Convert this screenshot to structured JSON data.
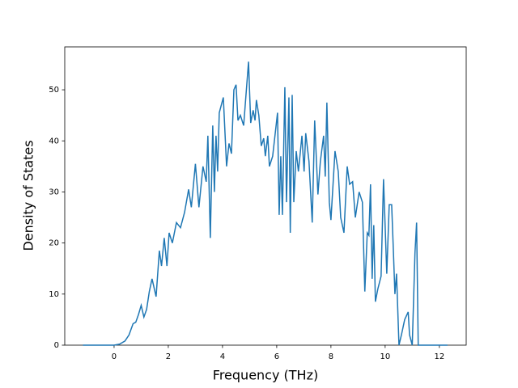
{
  "chart_data": {
    "type": "line",
    "x_label": "Frequency (THz)",
    "y_label": "Density of States",
    "xlim": [
      -1.82,
      12.99
    ],
    "ylim": [
      0,
      58.4
    ],
    "xticks": [
      0,
      2,
      4,
      6,
      8,
      10,
      12
    ],
    "yticks": [
      0,
      10,
      20,
      30,
      40,
      50
    ],
    "series": [
      {
        "color": "#1f77b4",
        "x": [
          -1.15,
          0.0,
          0.2,
          0.4,
          0.55,
          0.7,
          0.8,
          0.9,
          1.0,
          1.1,
          1.2,
          1.3,
          1.4,
          1.55,
          1.67,
          1.75,
          1.85,
          1.95,
          2.03,
          2.15,
          2.3,
          2.45,
          2.6,
          2.75,
          2.85,
          3.0,
          3.13,
          3.28,
          3.4,
          3.46,
          3.55,
          3.64,
          3.7,
          3.76,
          3.82,
          3.88,
          4.03,
          4.15,
          4.24,
          4.33,
          4.42,
          4.5,
          4.57,
          4.66,
          4.78,
          4.96,
          5.04,
          5.13,
          5.2,
          5.25,
          5.34,
          5.43,
          5.52,
          5.58,
          5.67,
          5.73,
          5.85,
          6.03,
          6.09,
          6.15,
          6.21,
          6.3,
          6.36,
          6.45,
          6.5,
          6.57,
          6.63,
          6.72,
          6.8,
          6.93,
          7.01,
          7.07,
          7.19,
          7.31,
          7.4,
          7.52,
          7.61,
          7.73,
          7.79,
          7.85,
          7.94,
          8.0,
          8.15,
          8.27,
          8.36,
          8.48,
          8.6,
          8.69,
          8.8,
          8.9,
          9.04,
          9.16,
          9.25,
          9.34,
          9.4,
          9.46,
          9.52,
          9.58,
          9.64,
          9.73,
          9.85,
          9.94,
          10.06,
          10.15,
          10.24,
          10.3,
          10.36,
          10.42,
          10.51,
          10.6,
          10.72,
          10.85,
          10.9,
          11.0,
          11.1,
          11.16,
          11.22,
          12.3
        ],
        "values": [
          0,
          0,
          0.2,
          0.8,
          2.0,
          4.2,
          4.5,
          6.0,
          7.8,
          5.5,
          7.0,
          10.5,
          13,
          9.5,
          18.5,
          15.5,
          21,
          15.5,
          22,
          20,
          24,
          23,
          26,
          30.5,
          27,
          35.5,
          27,
          35,
          32,
          41,
          21,
          43,
          30,
          41,
          34,
          45.5,
          48.5,
          35,
          39.5,
          37.5,
          50,
          51,
          44,
          45,
          43,
          55.5,
          43.5,
          46,
          44,
          48,
          45,
          39,
          40.5,
          37,
          41,
          35,
          37,
          45.5,
          25.5,
          37,
          25.5,
          50.5,
          28,
          48.5,
          22,
          49,
          28,
          38,
          34,
          41,
          34,
          41.5,
          36,
          24,
          44,
          29.5,
          36,
          41,
          33,
          47.5,
          28,
          24.5,
          38,
          34,
          25,
          22,
          35,
          31.5,
          32,
          25,
          30,
          28,
          10.5,
          22,
          21.5,
          31.5,
          13,
          23.5,
          8.5,
          11,
          13.5,
          32.5,
          14,
          27.5,
          27.5,
          19,
          10,
          14,
          0,
          2,
          5,
          6.5,
          2,
          0,
          18,
          24,
          0,
          0
        ]
      }
    ]
  }
}
